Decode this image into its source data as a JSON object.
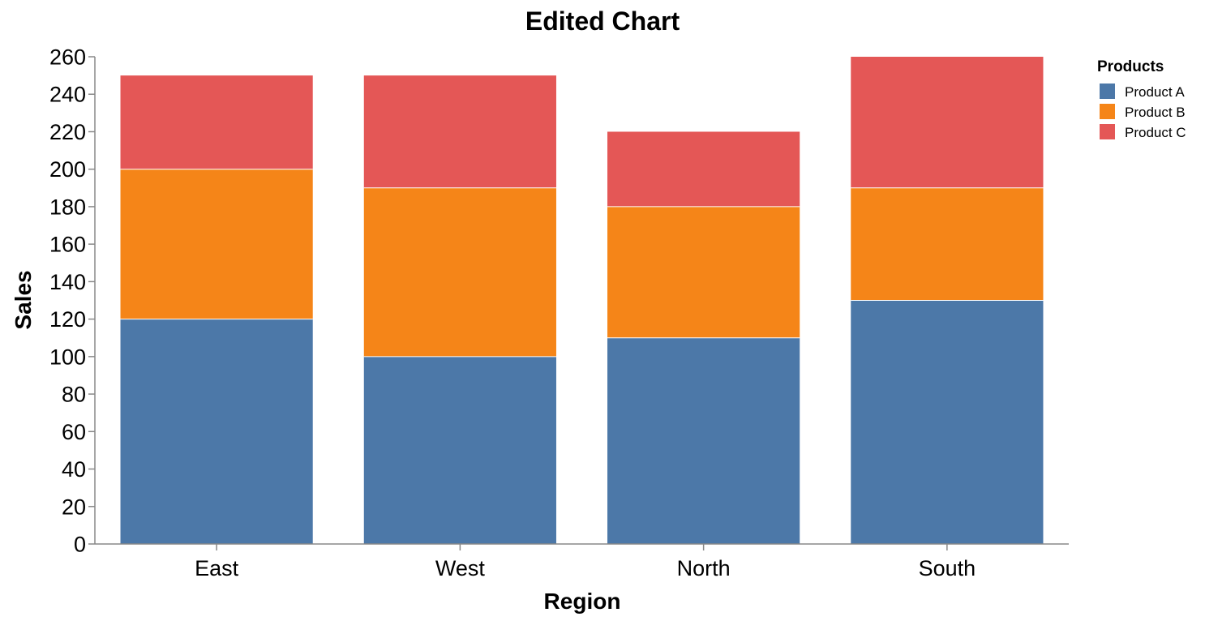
{
  "chart_data": {
    "type": "bar",
    "stacked": true,
    "title": "Edited Chart",
    "xlabel": "Region",
    "ylabel": "Sales",
    "categories": [
      "East",
      "West",
      "North",
      "South"
    ],
    "series": [
      {
        "name": "Product A",
        "color": "#4c78a8",
        "values": [
          120,
          100,
          110,
          130
        ]
      },
      {
        "name": "Product B",
        "color": "#f58518",
        "values": [
          80,
          90,
          70,
          60
        ]
      },
      {
        "name": "Product C",
        "color": "#e45756",
        "values": [
          50,
          60,
          40,
          70
        ]
      }
    ],
    "ylim": [
      0,
      260
    ],
    "yticks": [
      "0",
      "20",
      "40",
      "60",
      "80",
      "100",
      "120",
      "140",
      "160",
      "180",
      "200",
      "220",
      "240",
      "260"
    ],
    "grid": false,
    "legend": {
      "title": "Products",
      "placement": "right"
    }
  }
}
